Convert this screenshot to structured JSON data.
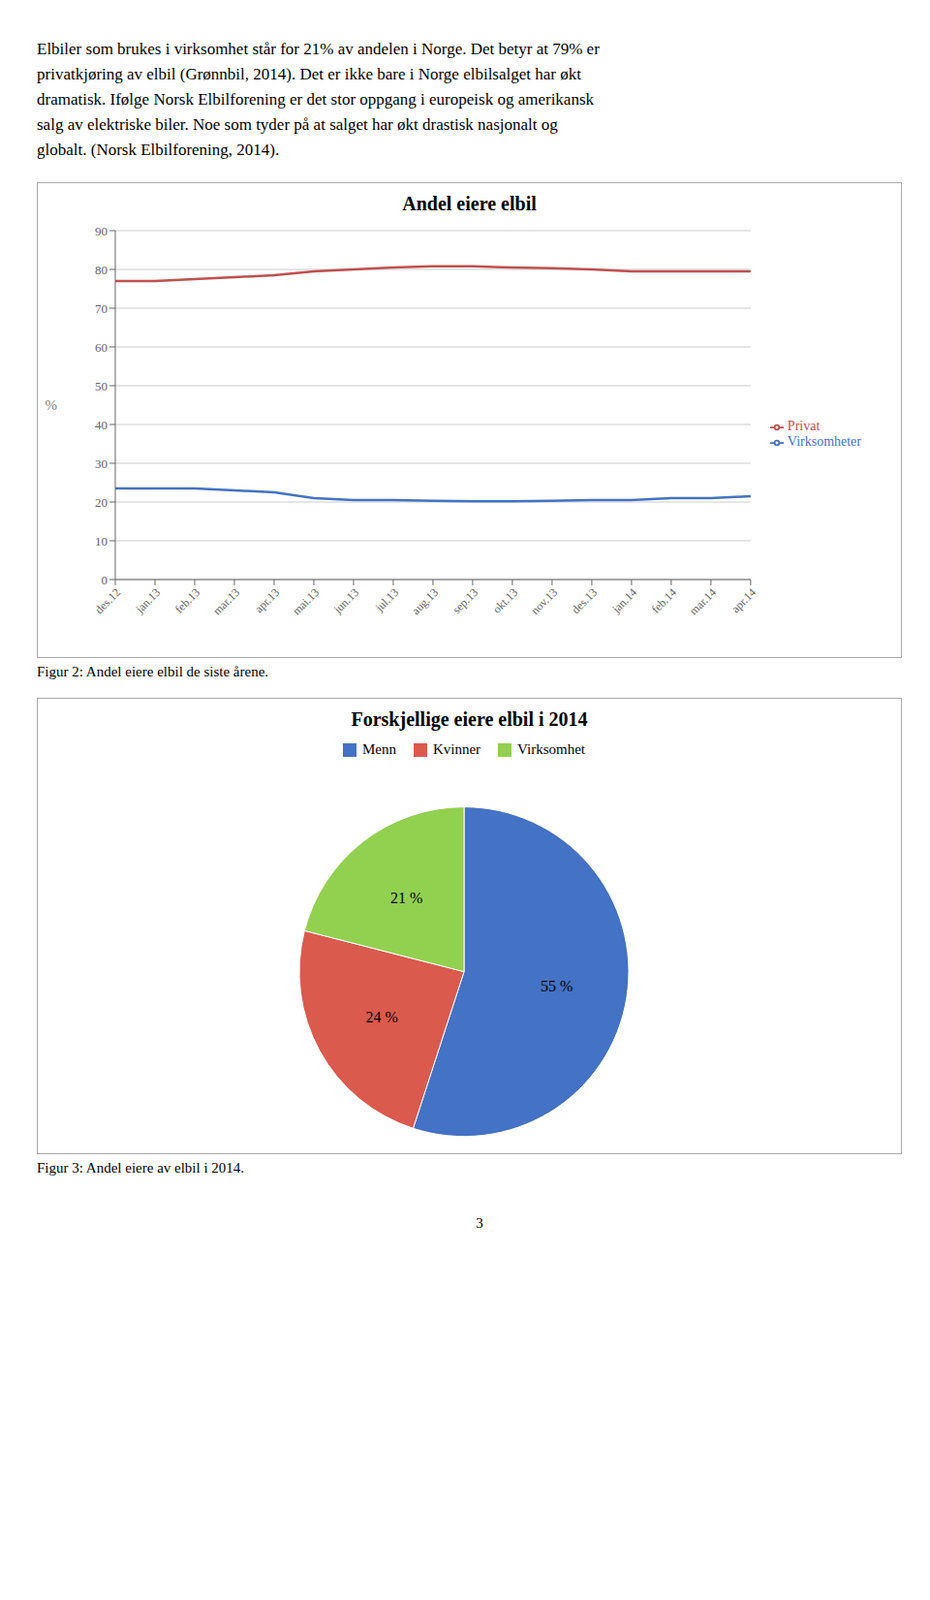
{
  "chart_data": [
    {
      "type": "line",
      "title": "Andel eiere elbil",
      "annotations": [
        "Elbiler som brukes i virksomhet står for 21% av andelen i Norge. Det betyr at 79% er",
        "privatkjøring av elbil (Grønnbil, 2014). Det er ikke bare i Norge elbilsalget har økt",
        "dramatisk. Ifølge Norsk Elbilforening er det stor oppgang i europeisk og amerikansk",
        "salg av elektriske biler. Noe som tyder på at salget har økt drastisk nasjonalt og",
        "globalt. (Norsk Elbilforening, 2014)."
      ],
      "caption": "Figur 2: Andel eiere elbil de siste årene.",
      "y_label": "%",
      "categories": [
        "des.12",
        "jan.13",
        "feb.13",
        "mar.13",
        "apr.13",
        "mai.13",
        "jun.13",
        "jul.13",
        "aug.13",
        "sep.13",
        "okt.13",
        "nov.13",
        "des.13",
        "jan.14",
        "feb.14",
        "mar.14",
        "apr.14"
      ],
      "series": [
        {
          "name": "Virksomheter",
          "color": "#4472c4",
          "values": [
            23.5,
            23.5,
            23.5,
            23.0,
            22.5,
            21.0,
            20.5,
            20.5,
            20.3,
            20.2,
            20.2,
            20.3,
            20.5,
            20.5,
            21.0,
            21.0,
            21.5
          ]
        },
        {
          "name": "Privat",
          "color": "#c0504d",
          "values": [
            77.0,
            77.0,
            77.5,
            78.0,
            78.5,
            79.5,
            80.0,
            80.5,
            80.8,
            80.8,
            80.5,
            80.3,
            80.0,
            79.5,
            79.5,
            79.5,
            79.5
          ]
        }
      ],
      "ylim": [
        0,
        90
      ],
      "yticks": [
        0,
        10,
        20,
        30,
        40,
        50,
        60,
        70,
        80,
        90
      ],
      "grid": true,
      "legend": "right"
    },
    {
      "type": "pie",
      "title": "Forskjellige eiere elbil i 2014",
      "caption": "Figur 3: Andel eiere av elbil i 2014.",
      "annotations": [
        "3"
      ],
      "categories": [
        "Menn",
        "Kvinner",
        "Virksomhet"
      ],
      "values": [
        55,
        24,
        21
      ],
      "value_labels": [
        "55 %",
        "24 %",
        "21 %"
      ],
      "colors": [
        "#4472c4",
        "#da5a4e",
        "#92d050"
      ],
      "data_labels": true,
      "legend": "top"
    }
  ]
}
